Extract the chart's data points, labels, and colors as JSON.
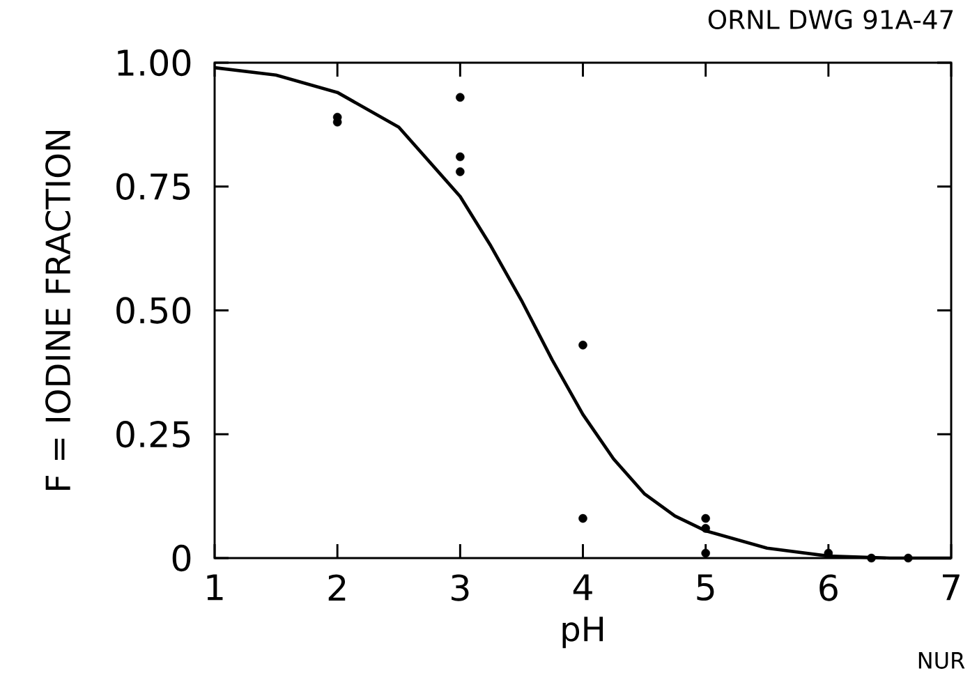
{
  "chart_data": {
    "type": "scatter",
    "xlabel": "pH",
    "ylabel": "F = IODINE FRACTION",
    "annotations": [
      "ORNL DWG 91A-47",
      "NUR"
    ],
    "xlim": [
      1,
      7
    ],
    "ylim": [
      0,
      1
    ],
    "xticks": [
      1,
      2,
      3,
      4,
      5,
      6,
      7
    ],
    "yticks": [
      0,
      0.25,
      {
        "value": 0.5,
        "label": "0.50"
      },
      0.75,
      {
        "value": 1,
        "label": "1.00"
      }
    ],
    "series": [
      {
        "color": "#000000",
        "marker": "circle",
        "x": [
          2,
          2,
          3,
          3,
          3,
          4,
          4,
          5,
          5,
          5,
          6,
          6.35,
          6.65
        ],
        "values": [
          0.89,
          0.88,
          0.93,
          0.81,
          0.78,
          0.43,
          0.08,
          0.08,
          0.06,
          0.01,
          0.01,
          0,
          0
        ]
      },
      {
        "type": "line",
        "color": "#000000",
        "marker": "none",
        "line_style": "solid",
        "x": [
          1,
          1.5,
          2,
          2.5,
          3,
          3.25,
          3.5,
          3.75,
          4,
          4.25,
          4.5,
          4.75,
          5,
          5.5,
          6,
          6.5,
          7
        ],
        "values": [
          0.99,
          0.975,
          0.94,
          0.87,
          0.73,
          0.63,
          0.52,
          0.4,
          0.29,
          0.2,
          0.13,
          0.085,
          0.055,
          0.02,
          0.004,
          0,
          0
        ]
      }
    ]
  }
}
